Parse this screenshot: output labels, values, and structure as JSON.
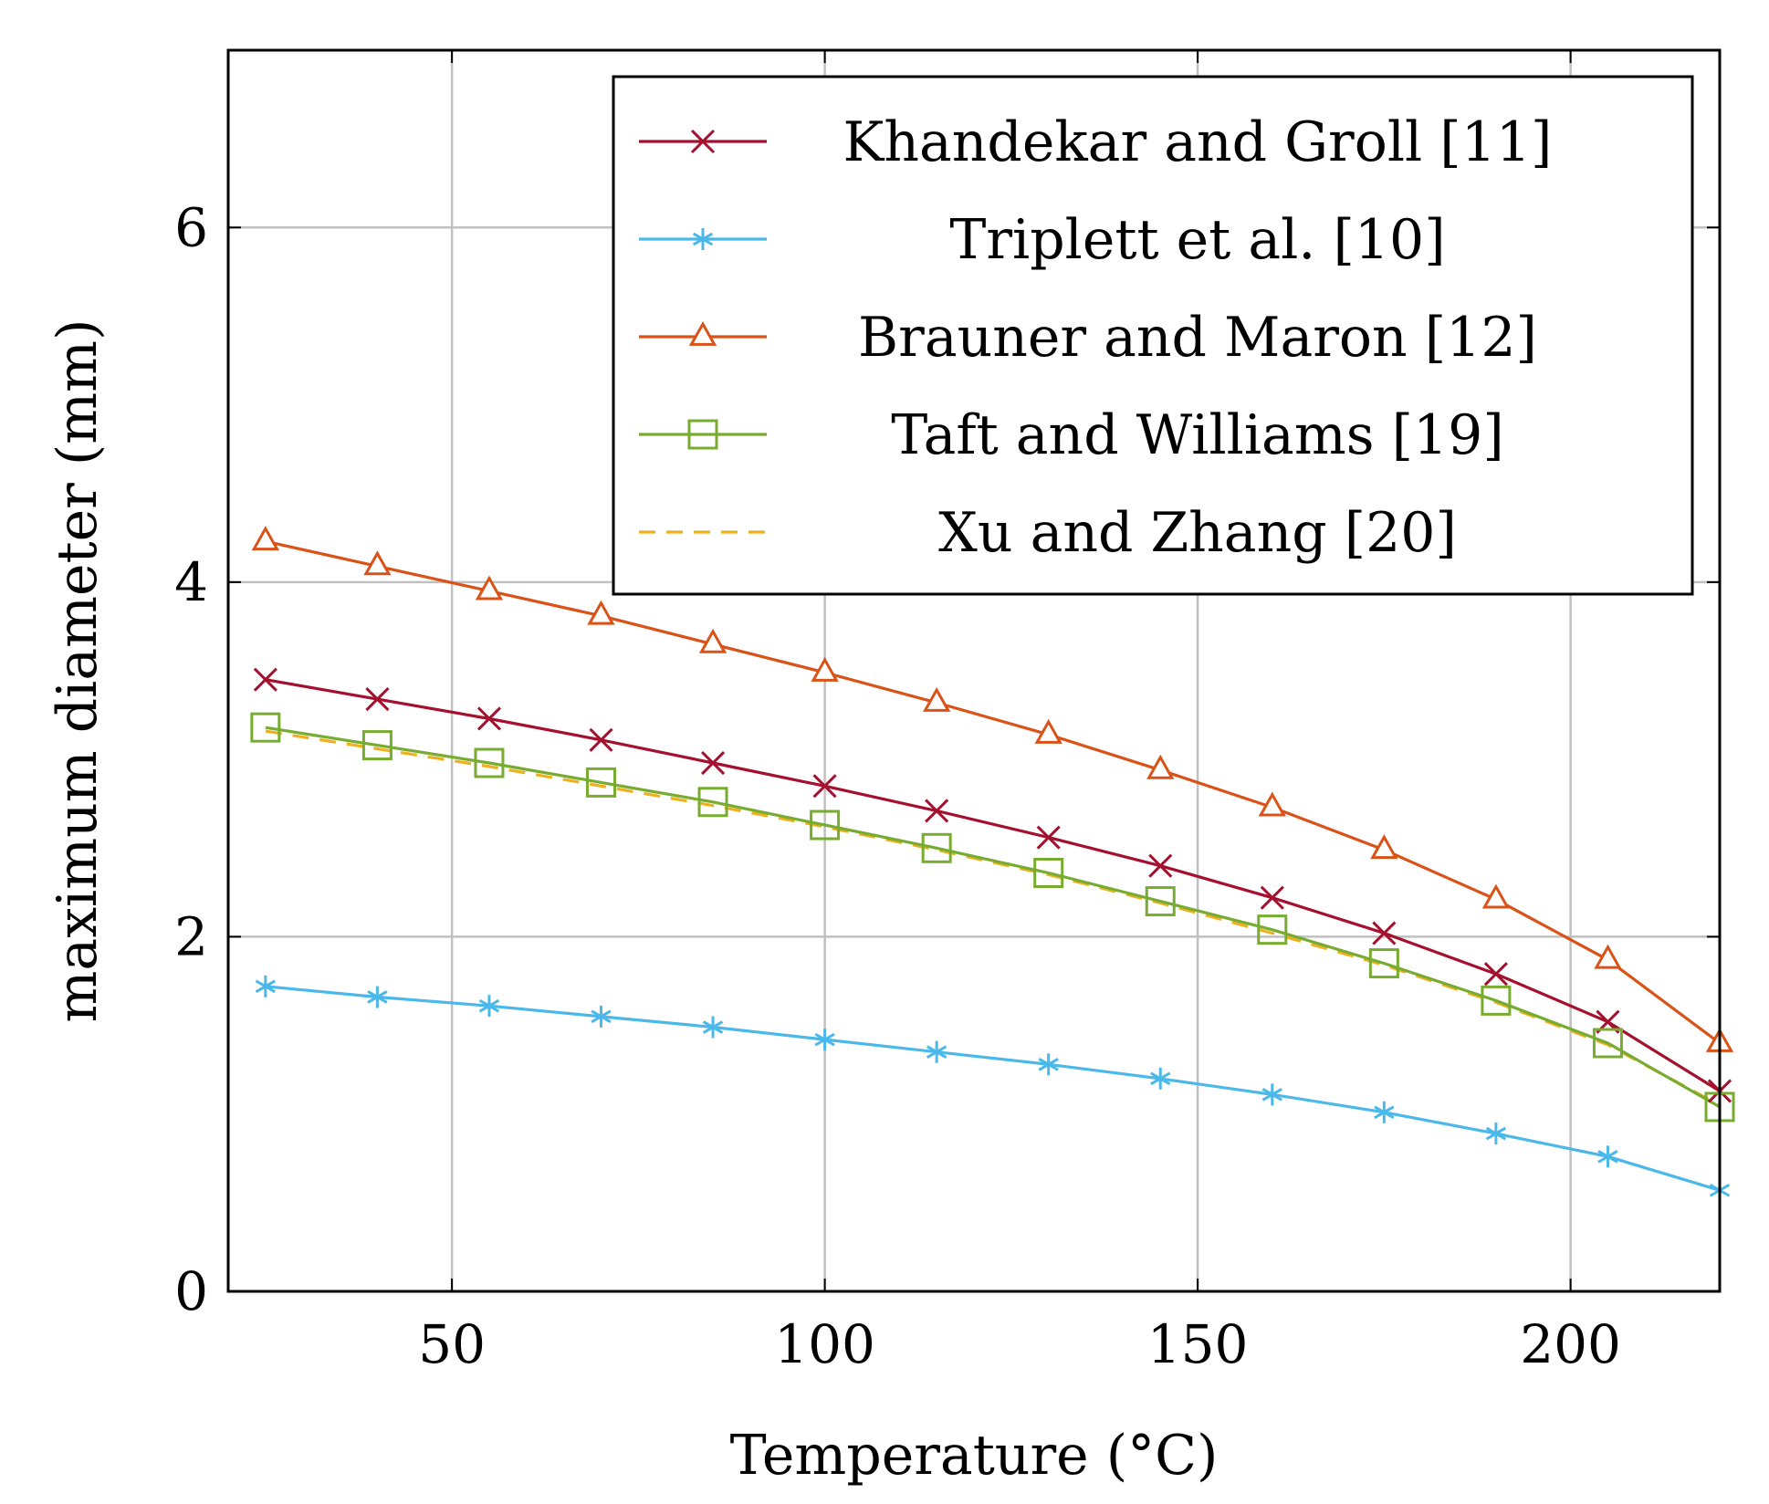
{
  "chart_data": {
    "type": "line",
    "title": "",
    "xlabel": "Temperature (°C)",
    "ylabel": "maximum diameter (mm)",
    "xlim": [
      20,
      220
    ],
    "ylim": [
      0,
      7
    ],
    "xticks": [
      50,
      100,
      150,
      200
    ],
    "yticks": [
      0,
      2,
      4,
      6
    ],
    "grid": true,
    "legend_position": "top-right",
    "x": [
      25,
      40,
      55,
      70,
      85,
      100,
      115,
      130,
      145,
      160,
      175,
      190,
      205,
      220
    ],
    "series": [
      {
        "name": "Khandekar and Groll [11]",
        "color": "#a4102d",
        "marker": "x",
        "dashed": false,
        "values": [
          3.45,
          3.34,
          3.23,
          3.11,
          2.98,
          2.85,
          2.71,
          2.56,
          2.4,
          2.22,
          2.02,
          1.79,
          1.52,
          1.13
        ]
      },
      {
        "name": "Triplett et al. [10]",
        "color": "#4ab8e8",
        "marker": "star",
        "dashed": false,
        "values": [
          1.72,
          1.66,
          1.61,
          1.55,
          1.49,
          1.42,
          1.35,
          1.28,
          1.2,
          1.11,
          1.01,
          0.89,
          0.76,
          0.57
        ]
      },
      {
        "name": "Brauner and Maron [12]",
        "color": "#d95319",
        "marker": "triangle",
        "dashed": false,
        "values": [
          4.23,
          4.09,
          3.95,
          3.81,
          3.65,
          3.49,
          3.32,
          3.14,
          2.94,
          2.73,
          2.49,
          2.21,
          1.87,
          1.4
        ]
      },
      {
        "name": "Taft and Williams [19]",
        "color": "#77ac30",
        "marker": "square",
        "dashed": false,
        "values": [
          3.18,
          3.08,
          2.98,
          2.87,
          2.76,
          2.63,
          2.5,
          2.36,
          2.2,
          2.04,
          1.85,
          1.64,
          1.4,
          1.04
        ]
      },
      {
        "name": "Xu and Zhang [20]",
        "color": "#edb120",
        "marker": "none",
        "dashed": true,
        "values": [
          3.16,
          3.06,
          2.96,
          2.85,
          2.74,
          2.62,
          2.49,
          2.35,
          2.19,
          2.02,
          1.84,
          1.63,
          1.39,
          1.05
        ]
      }
    ]
  }
}
